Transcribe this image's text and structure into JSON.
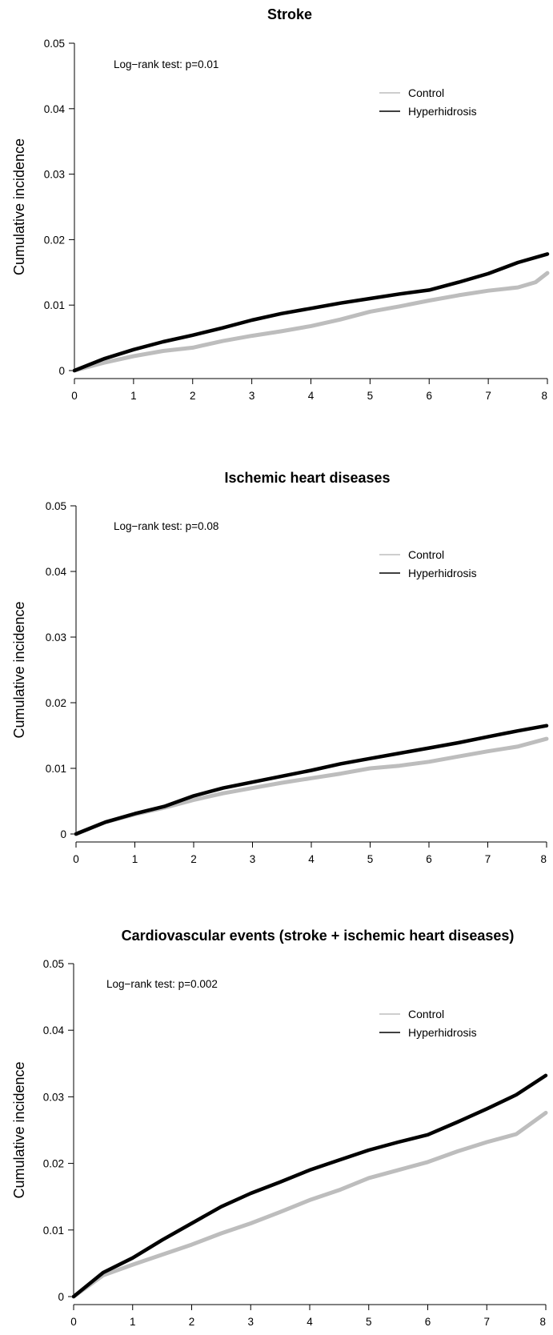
{
  "chart_data": [
    {
      "type": "line",
      "title": "Stroke",
      "xlabel": "",
      "ylabel": "Cumulative incidence",
      "annotation": "Log−rank test: p=0.01",
      "xlim": [
        0,
        8
      ],
      "ylim": [
        0,
        0.05
      ],
      "x_ticks": [
        "0",
        "1",
        "2",
        "3",
        "4",
        "5",
        "6",
        "7",
        "8"
      ],
      "y_ticks": [
        "0",
        "0.01",
        "0.02",
        "0.03",
        "0.04",
        "0.05"
      ],
      "legend": {
        "position": "top-right",
        "entries": [
          "Control",
          "Hyperhidrosis"
        ]
      },
      "series": [
        {
          "name": "Control",
          "color": "#bdbdbd",
          "x": [
            0,
            0.5,
            1,
            1.5,
            2,
            2.5,
            3,
            3.5,
            4,
            4.5,
            5,
            5.5,
            6,
            6.5,
            7,
            7.5,
            7.8,
            8
          ],
          "y": [
            0,
            0.0012,
            0.0022,
            0.003,
            0.0035,
            0.0045,
            0.0053,
            0.006,
            0.0068,
            0.0078,
            0.009,
            0.0098,
            0.0107,
            0.0115,
            0.0122,
            0.0127,
            0.0135,
            0.0149
          ]
        },
        {
          "name": "Hyperhidrosis",
          "color": "#000000",
          "x": [
            0,
            0.5,
            1,
            1.5,
            2,
            2.5,
            3,
            3.5,
            4,
            4.5,
            5,
            5.5,
            6,
            6.5,
            7,
            7.5,
            8
          ],
          "y": [
            0,
            0.0018,
            0.0032,
            0.0044,
            0.0054,
            0.0065,
            0.0077,
            0.0087,
            0.0095,
            0.0103,
            0.011,
            0.0117,
            0.0123,
            0.0135,
            0.0148,
            0.0165,
            0.0178
          ]
        }
      ]
    },
    {
      "type": "line",
      "title": "Ischemic heart diseases",
      "xlabel": "",
      "ylabel": "Cumulative incidence",
      "annotation": "Log−rank test: p=0.08",
      "xlim": [
        0,
        8
      ],
      "ylim": [
        0,
        0.05
      ],
      "x_ticks": [
        "0",
        "1",
        "2",
        "3",
        "4",
        "5",
        "6",
        "7",
        "8"
      ],
      "y_ticks": [
        "0",
        "0.01",
        "0.02",
        "0.03",
        "0.04",
        "0.05"
      ],
      "legend": {
        "position": "top-right",
        "entries": [
          "Control",
          "Hyperhidrosis"
        ]
      },
      "series": [
        {
          "name": "Control",
          "color": "#bdbdbd",
          "x": [
            0,
            0.5,
            1,
            1.5,
            2,
            2.5,
            3,
            3.5,
            4,
            4.5,
            5,
            5.5,
            6,
            6.5,
            7,
            7.5,
            8
          ],
          "y": [
            0,
            0.0018,
            0.003,
            0.004,
            0.0052,
            0.0062,
            0.007,
            0.0078,
            0.0085,
            0.0092,
            0.01,
            0.0104,
            0.011,
            0.0118,
            0.0126,
            0.0133,
            0.0145
          ]
        },
        {
          "name": "Hyperhidrosis",
          "color": "#000000",
          "x": [
            0,
            0.5,
            1,
            1.5,
            2,
            2.5,
            3,
            3.5,
            4,
            4.5,
            5,
            5.5,
            6,
            6.5,
            7,
            7.5,
            8
          ],
          "y": [
            0,
            0.0018,
            0.0031,
            0.0042,
            0.0058,
            0.007,
            0.0079,
            0.0088,
            0.0097,
            0.0107,
            0.0115,
            0.0123,
            0.0131,
            0.0139,
            0.0148,
            0.0157,
            0.0165
          ]
        }
      ]
    },
    {
      "type": "line",
      "title": "Cardiovascular events (stroke + ischemic heart diseases)",
      "xlabel": "",
      "ylabel": "Cumulative incidence",
      "annotation": "Log−rank test: p=0.002",
      "xlim": [
        0,
        8
      ],
      "ylim": [
        0,
        0.05
      ],
      "x_ticks": [
        "0",
        "1",
        "2",
        "3",
        "4",
        "5",
        "6",
        "7",
        "8"
      ],
      "y_ticks": [
        "0",
        "0.01",
        "0.02",
        "0.03",
        "0.04",
        "0.05"
      ],
      "legend": {
        "position": "top-right",
        "entries": [
          "Control",
          "Hyperhidrosis"
        ]
      },
      "series": [
        {
          "name": "Control",
          "color": "#bdbdbd",
          "x": [
            0,
            0.5,
            1,
            1.5,
            2,
            2.5,
            3,
            3.5,
            4,
            4.5,
            5,
            5.5,
            6,
            6.5,
            7,
            7.5,
            8
          ],
          "y": [
            0,
            0.0032,
            0.0048,
            0.0063,
            0.0078,
            0.0095,
            0.011,
            0.0127,
            0.0145,
            0.016,
            0.0178,
            0.019,
            0.0202,
            0.0218,
            0.0232,
            0.0244,
            0.0276
          ]
        },
        {
          "name": "Hyperhidrosis",
          "color": "#000000",
          "x": [
            0,
            0.5,
            1,
            1.5,
            2,
            2.5,
            3,
            3.5,
            4,
            4.5,
            5,
            5.5,
            6,
            6.5,
            7,
            7.5,
            8
          ],
          "y": [
            0,
            0.0036,
            0.0058,
            0.0085,
            0.011,
            0.0135,
            0.0155,
            0.0172,
            0.019,
            0.0205,
            0.022,
            0.0232,
            0.0243,
            0.0262,
            0.0282,
            0.0303,
            0.0332
          ]
        }
      ]
    }
  ]
}
